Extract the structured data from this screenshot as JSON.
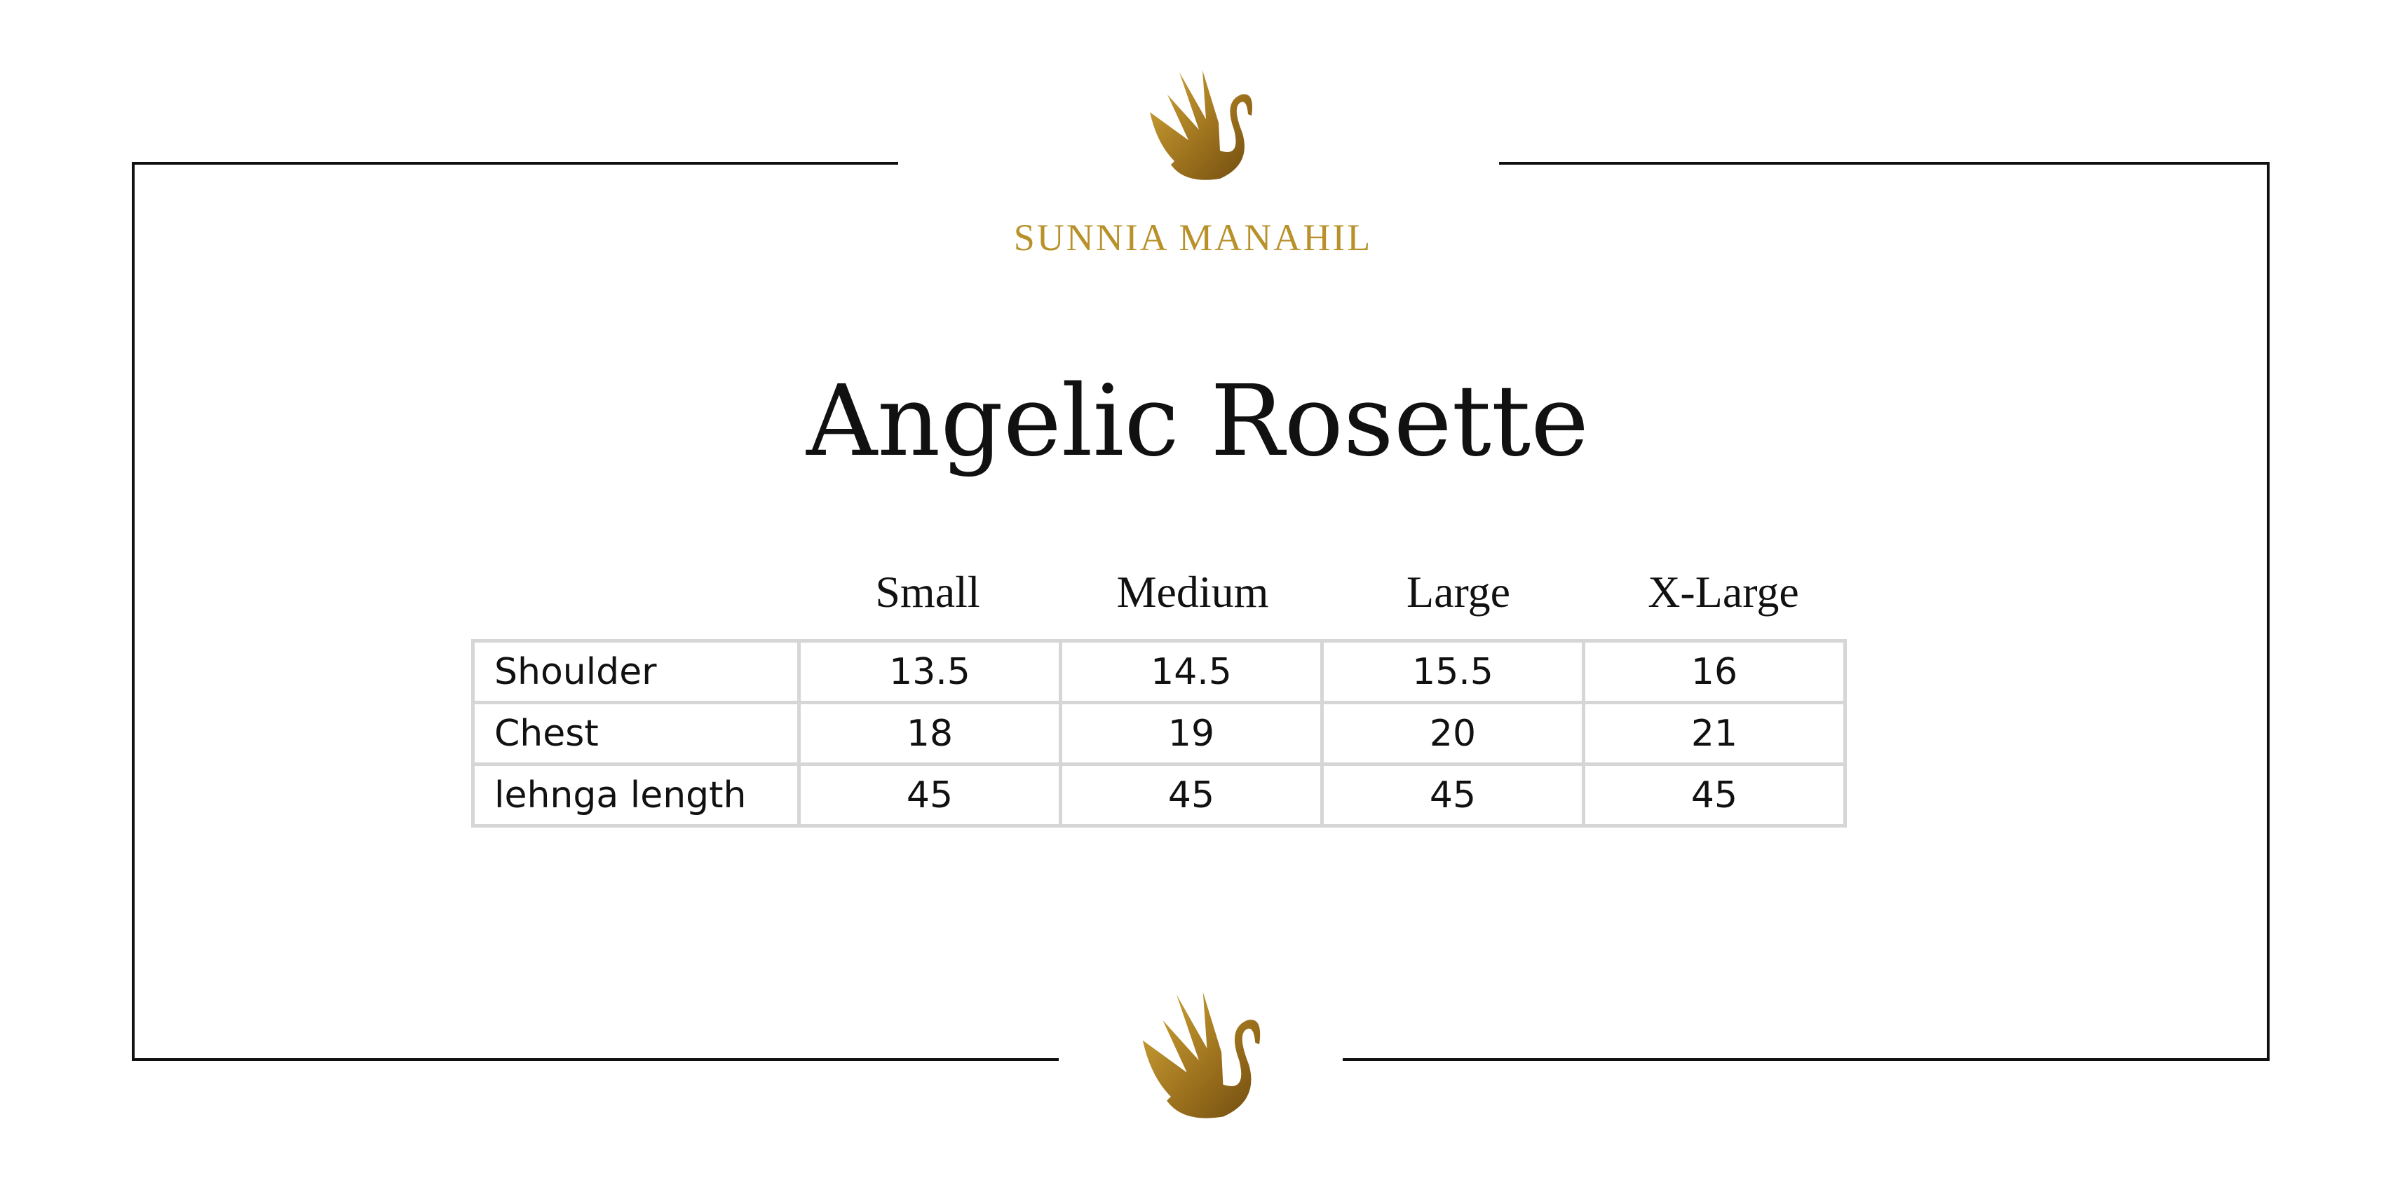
{
  "brand": {
    "name": "SUNNIA MANAHIL",
    "color": "#b8912a",
    "logo_icon": "gold-swan-icon"
  },
  "title": "Angelic Rosette",
  "size_chart": {
    "columns": [
      "Small",
      "Medium",
      "Large",
      "X-Large"
    ],
    "rows": [
      {
        "label": "Shoulder",
        "values": [
          "13.5",
          "14.5",
          "15.5",
          "16"
        ]
      },
      {
        "label": "Chest",
        "values": [
          "18",
          "19",
          "20",
          "21"
        ]
      },
      {
        "label": "lehnga length",
        "values": [
          "45",
          "45",
          "45",
          "45"
        ]
      }
    ]
  }
}
